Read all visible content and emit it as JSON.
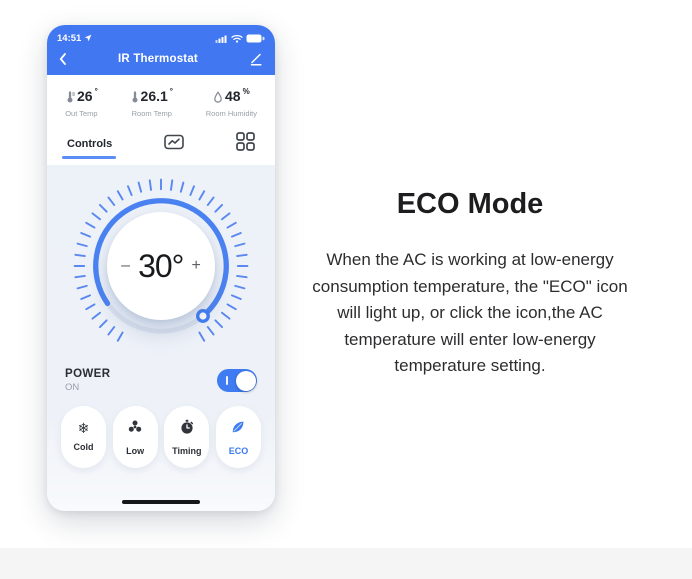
{
  "colors": {
    "header_blue": "#4177f0",
    "accent_blue": "#3f7cf2",
    "eco_blue": "#3a78f2",
    "panel_tint": "#eef2f8"
  },
  "phone": {
    "status_bar": {
      "time": "14:51"
    },
    "header": {
      "title": "IR Thermostat"
    },
    "stats": [
      {
        "icon": "thermometer-icon",
        "value": "26",
        "unit": "°",
        "label": "Out Temp"
      },
      {
        "icon": "thermometer-icon",
        "value": "26.1",
        "unit": "°",
        "label": "Room Temp"
      },
      {
        "icon": "humidity-drop-icon",
        "value": "48",
        "unit": "%",
        "label": "Room Humidity"
      }
    ],
    "tabs": {
      "controls_label": "Controls",
      "chart_tab_icon": "chart-icon",
      "grid_tab_icon": "grid-icon"
    },
    "dial": {
      "decrease": "–",
      "temperature": "30°",
      "increase": "+"
    },
    "power": {
      "title": "POWER",
      "state": "ON",
      "on": true
    },
    "mode_buttons": [
      {
        "icon": "snowflake-icon",
        "glyph": "❄",
        "label": "Cold"
      },
      {
        "icon": "fan-icon",
        "label": "Low"
      },
      {
        "icon": "timer-icon",
        "label": "Timing"
      },
      {
        "icon": "leaf-icon",
        "label": "ECO",
        "active": true
      }
    ]
  },
  "info": {
    "title": "ECO Mode",
    "description": "When the AC is working at low-energy consumption temperature, the \"ECO\" icon will light up, or click the icon,the AC temperature will enter low-energy temperature setting."
  }
}
